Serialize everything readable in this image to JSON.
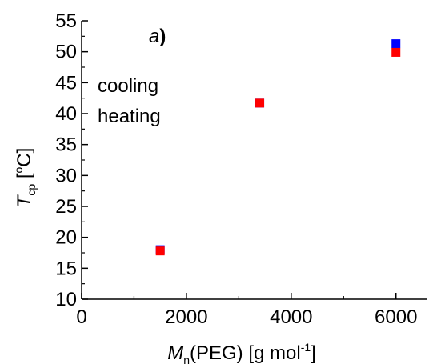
{
  "chart_data": {
    "type": "scatter",
    "panel_label": "a",
    "panel_label_paren": ")",
    "xlabel": {
      "prefix": "M",
      "subscript": "n",
      "middle": "(PEG) [g mol",
      "superscript": "-1",
      "suffix": "]"
    },
    "ylabel": {
      "prefix": "T",
      "subscript": "cp",
      "middle": " [",
      "superscript": "o",
      "suffix": "C]"
    },
    "xlim": [
      0,
      6600
    ],
    "ylim": [
      10,
      55
    ],
    "xticks": [
      0,
      2000,
      4000,
      6000
    ],
    "xtick_labels": [
      "0",
      "2000",
      "4000",
      "6000"
    ],
    "yticks": [
      10,
      15,
      20,
      25,
      30,
      35,
      40,
      45,
      50,
      55
    ],
    "ytick_labels": [
      "10",
      "15",
      "20",
      "25",
      "30",
      "35",
      "40",
      "45",
      "50",
      "55"
    ],
    "legend_placement": "upper-left",
    "grid": false,
    "series": [
      {
        "name": "cooling",
        "color": "#0000ff",
        "x": [
          1500,
          3400,
          6000
        ],
        "y": [
          18.0,
          41.7,
          51.3
        ]
      },
      {
        "name": "heating",
        "color": "#ff0000",
        "x": [
          1500,
          3400,
          6000
        ],
        "y": [
          17.8,
          41.7,
          49.9
        ]
      }
    ]
  }
}
